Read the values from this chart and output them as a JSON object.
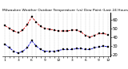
{
  "title": "Milwaukee Weather Outdoor Temperature (vs) Dew Point (Last 24 Hours)",
  "temp_color": "#cc0000",
  "dew_color": "#0000cc",
  "bg_color": "#ffffff",
  "grid_color": "#888888",
  "text_color": "#000000",
  "temp_values": [
    53,
    50,
    47,
    45,
    48,
    54,
    63,
    57,
    52,
    50,
    49,
    48,
    47,
    47,
    47,
    48,
    48,
    46,
    42,
    40,
    42,
    44,
    44,
    43
  ],
  "dew_values": [
    32,
    28,
    24,
    22,
    24,
    28,
    36,
    30,
    26,
    24,
    24,
    24,
    25,
    26,
    26,
    26,
    27,
    27,
    26,
    26,
    28,
    29,
    30,
    29
  ],
  "x_labels": [
    "1",
    "",
    "",
    "3",
    "",
    "",
    "6",
    "",
    "",
    "9",
    "",
    "",
    "12",
    "",
    "",
    "3",
    "",
    "",
    "6",
    "",
    "",
    "9",
    "",
    "12"
  ],
  "ylim": [
    18,
    68
  ],
  "yticks": [
    20,
    30,
    40,
    50,
    60
  ],
  "ylabel_fontsize": 3.8,
  "xlabel_fontsize": 3.2,
  "title_fontsize": 3.2,
  "marker_size": 1.8,
  "linewidth": 0.6,
  "n_points": 24
}
